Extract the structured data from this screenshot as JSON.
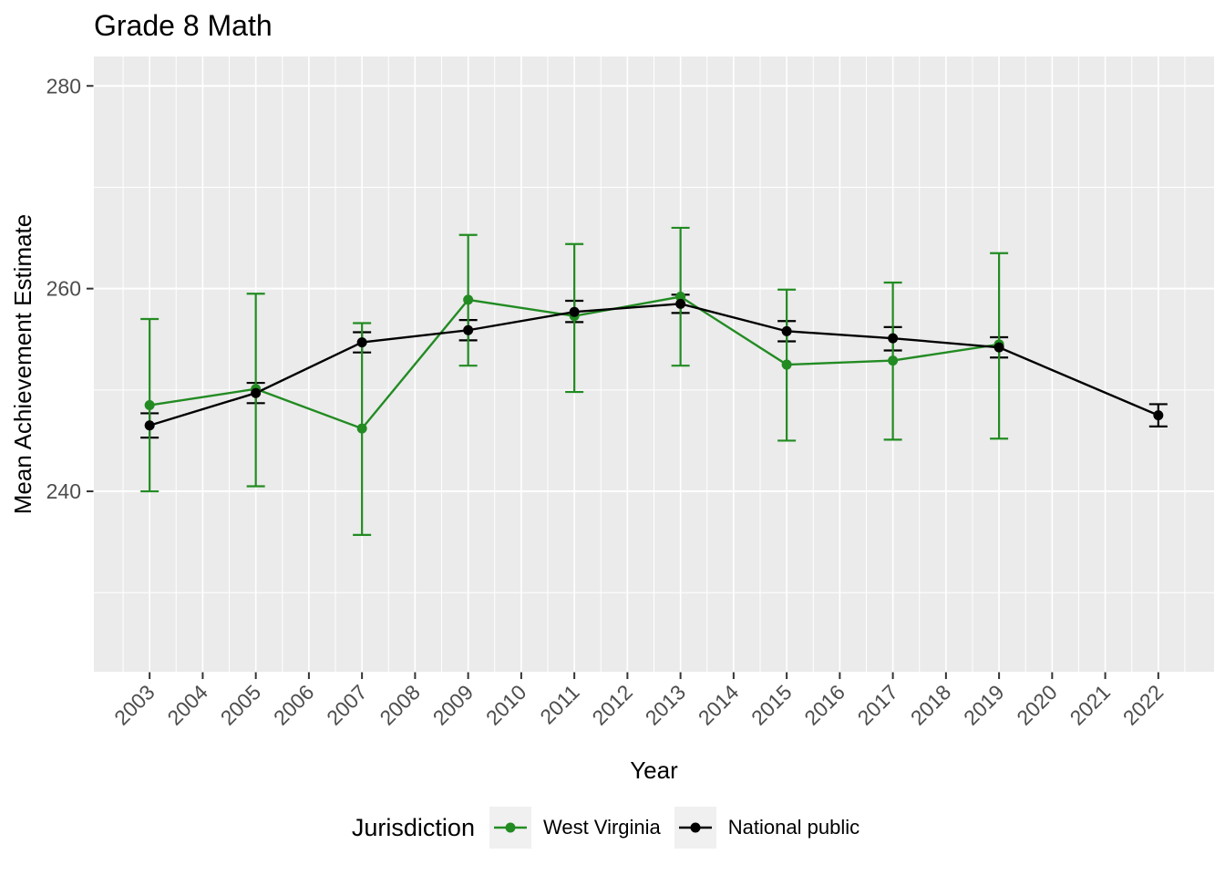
{
  "title": "Grade 8 Math",
  "axes": {
    "x_title": "Year",
    "y_title": "Mean Achievement Estimate",
    "y_tick_labels": [
      "240",
      "260",
      "280"
    ],
    "x_tick_labels": [
      "2003",
      "2004",
      "2005",
      "2006",
      "2007",
      "2008",
      "2009",
      "2010",
      "2011",
      "2012",
      "2013",
      "2014",
      "2015",
      "2016",
      "2017",
      "2018",
      "2019",
      "2020",
      "2021",
      "2022"
    ]
  },
  "legend": {
    "title": "Jurisdiction",
    "entries": [
      {
        "label": "West Virginia",
        "color": "#228B22"
      },
      {
        "label": "National public",
        "color": "#000000"
      }
    ]
  },
  "style_colors": {
    "panel_background": "#EBEBEB",
    "gridline": "#FFFFFF",
    "tick_mark": "#333333",
    "tick_label": "#4D4D4D",
    "legend_key_background": "#F0F0F0"
  },
  "chart_data": {
    "type": "line",
    "title": "Grade 8 Math",
    "xlabel": "Year",
    "ylabel": "Mean Achievement Estimate",
    "xlim": [
      2001.95,
      2023.05
    ],
    "ylim": [
      222.2,
      282.9
    ],
    "x_major_ticks": [
      2003,
      2004,
      2005,
      2006,
      2007,
      2008,
      2009,
      2010,
      2011,
      2012,
      2013,
      2014,
      2015,
      2016,
      2017,
      2018,
      2019,
      2020,
      2021,
      2022
    ],
    "y_major_ticks": [
      240,
      260,
      280
    ],
    "y_minor_ticks": [
      230,
      250,
      270
    ],
    "grid": "white major and minor gridlines on grey panel",
    "legend_position": "bottom",
    "error_bars": true,
    "series": [
      {
        "name": "West Virginia",
        "color": "#228B22",
        "points": [
          {
            "x": 2003,
            "y": 248.5,
            "ci_low": 240.0,
            "ci_high": 257.0
          },
          {
            "x": 2005,
            "y": 250.1,
            "ci_low": 240.5,
            "ci_high": 259.5
          },
          {
            "x": 2007,
            "y": 246.2,
            "ci_low": 235.7,
            "ci_high": 256.6
          },
          {
            "x": 2009,
            "y": 258.9,
            "ci_low": 252.4,
            "ci_high": 265.3
          },
          {
            "x": 2011,
            "y": 257.3,
            "ci_low": 249.8,
            "ci_high": 264.4
          },
          {
            "x": 2013,
            "y": 259.2,
            "ci_low": 252.4,
            "ci_high": 266.0
          },
          {
            "x": 2015,
            "y": 252.5,
            "ci_low": 245.0,
            "ci_high": 259.9
          },
          {
            "x": 2017,
            "y": 252.9,
            "ci_low": 245.1,
            "ci_high": 260.6
          },
          {
            "x": 2019,
            "y": 254.5,
            "ci_low": 245.2,
            "ci_high": 263.5
          }
        ]
      },
      {
        "name": "National public",
        "color": "#000000",
        "points": [
          {
            "x": 2003,
            "y": 246.5,
            "ci_low": 245.3,
            "ci_high": 247.7
          },
          {
            "x": 2005,
            "y": 249.7,
            "ci_low": 248.7,
            "ci_high": 250.7
          },
          {
            "x": 2007,
            "y": 254.7,
            "ci_low": 253.7,
            "ci_high": 255.7
          },
          {
            "x": 2009,
            "y": 255.9,
            "ci_low": 254.9,
            "ci_high": 256.9
          },
          {
            "x": 2011,
            "y": 257.7,
            "ci_low": 256.7,
            "ci_high": 258.8
          },
          {
            "x": 2013,
            "y": 258.5,
            "ci_low": 257.6,
            "ci_high": 259.4
          },
          {
            "x": 2015,
            "y": 255.8,
            "ci_low": 254.8,
            "ci_high": 256.8
          },
          {
            "x": 2017,
            "y": 255.1,
            "ci_low": 253.9,
            "ci_high": 256.2
          },
          {
            "x": 2019,
            "y": 254.2,
            "ci_low": 253.2,
            "ci_high": 255.2
          },
          {
            "x": 2022,
            "y": 247.5,
            "ci_low": 246.4,
            "ci_high": 248.6
          }
        ]
      }
    ]
  }
}
